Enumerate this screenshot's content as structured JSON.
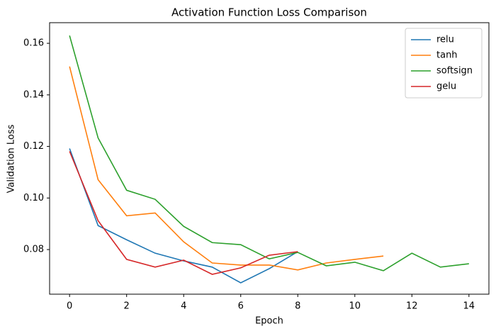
{
  "chart_data": {
    "type": "line",
    "title": "Activation Function Loss Comparison",
    "x_label": "Epoch",
    "y_label": "Validation Loss",
    "x": [
      0,
      1,
      2,
      3,
      4,
      5,
      6,
      7,
      8,
      9,
      10,
      11,
      12,
      13,
      14
    ],
    "series": [
      {
        "name": "relu",
        "color": "#1f77b4",
        "values": [
          0.1192,
          0.0893,
          0.0838,
          0.0786,
          0.0756,
          0.0732,
          0.0671,
          0.0726,
          0.0792,
          null,
          null,
          null,
          null,
          null,
          null
        ]
      },
      {
        "name": "tanh",
        "color": "#ff7f0e",
        "values": [
          0.151,
          0.1071,
          0.0931,
          0.0942,
          0.083,
          0.0748,
          0.074,
          0.074,
          0.0721,
          0.0748,
          0.0762,
          0.0775,
          null,
          null,
          null
        ]
      },
      {
        "name": "softsign",
        "color": "#2ca02c",
        "values": [
          0.163,
          0.1233,
          0.103,
          0.0995,
          0.089,
          0.0827,
          0.0819,
          0.0764,
          0.0789,
          0.0737,
          0.0751,
          0.0718,
          0.0786,
          0.0732,
          0.0745
        ]
      },
      {
        "name": "gelu",
        "color": "#d62728",
        "values": [
          0.1181,
          0.0912,
          0.0762,
          0.0732,
          0.0759,
          0.0704,
          0.0729,
          0.0778,
          0.0792,
          null,
          null,
          null,
          null,
          null,
          null
        ]
      }
    ],
    "xlim": [
      -0.7,
      14.7
    ],
    "xticks": [
      0,
      2,
      4,
      6,
      8,
      10,
      12,
      14
    ],
    "ylim": [
      0.0627,
      0.168
    ],
    "yticks": [
      0.08,
      0.1,
      0.12,
      0.14,
      0.16
    ],
    "legend": "upper right",
    "grid": false
  }
}
